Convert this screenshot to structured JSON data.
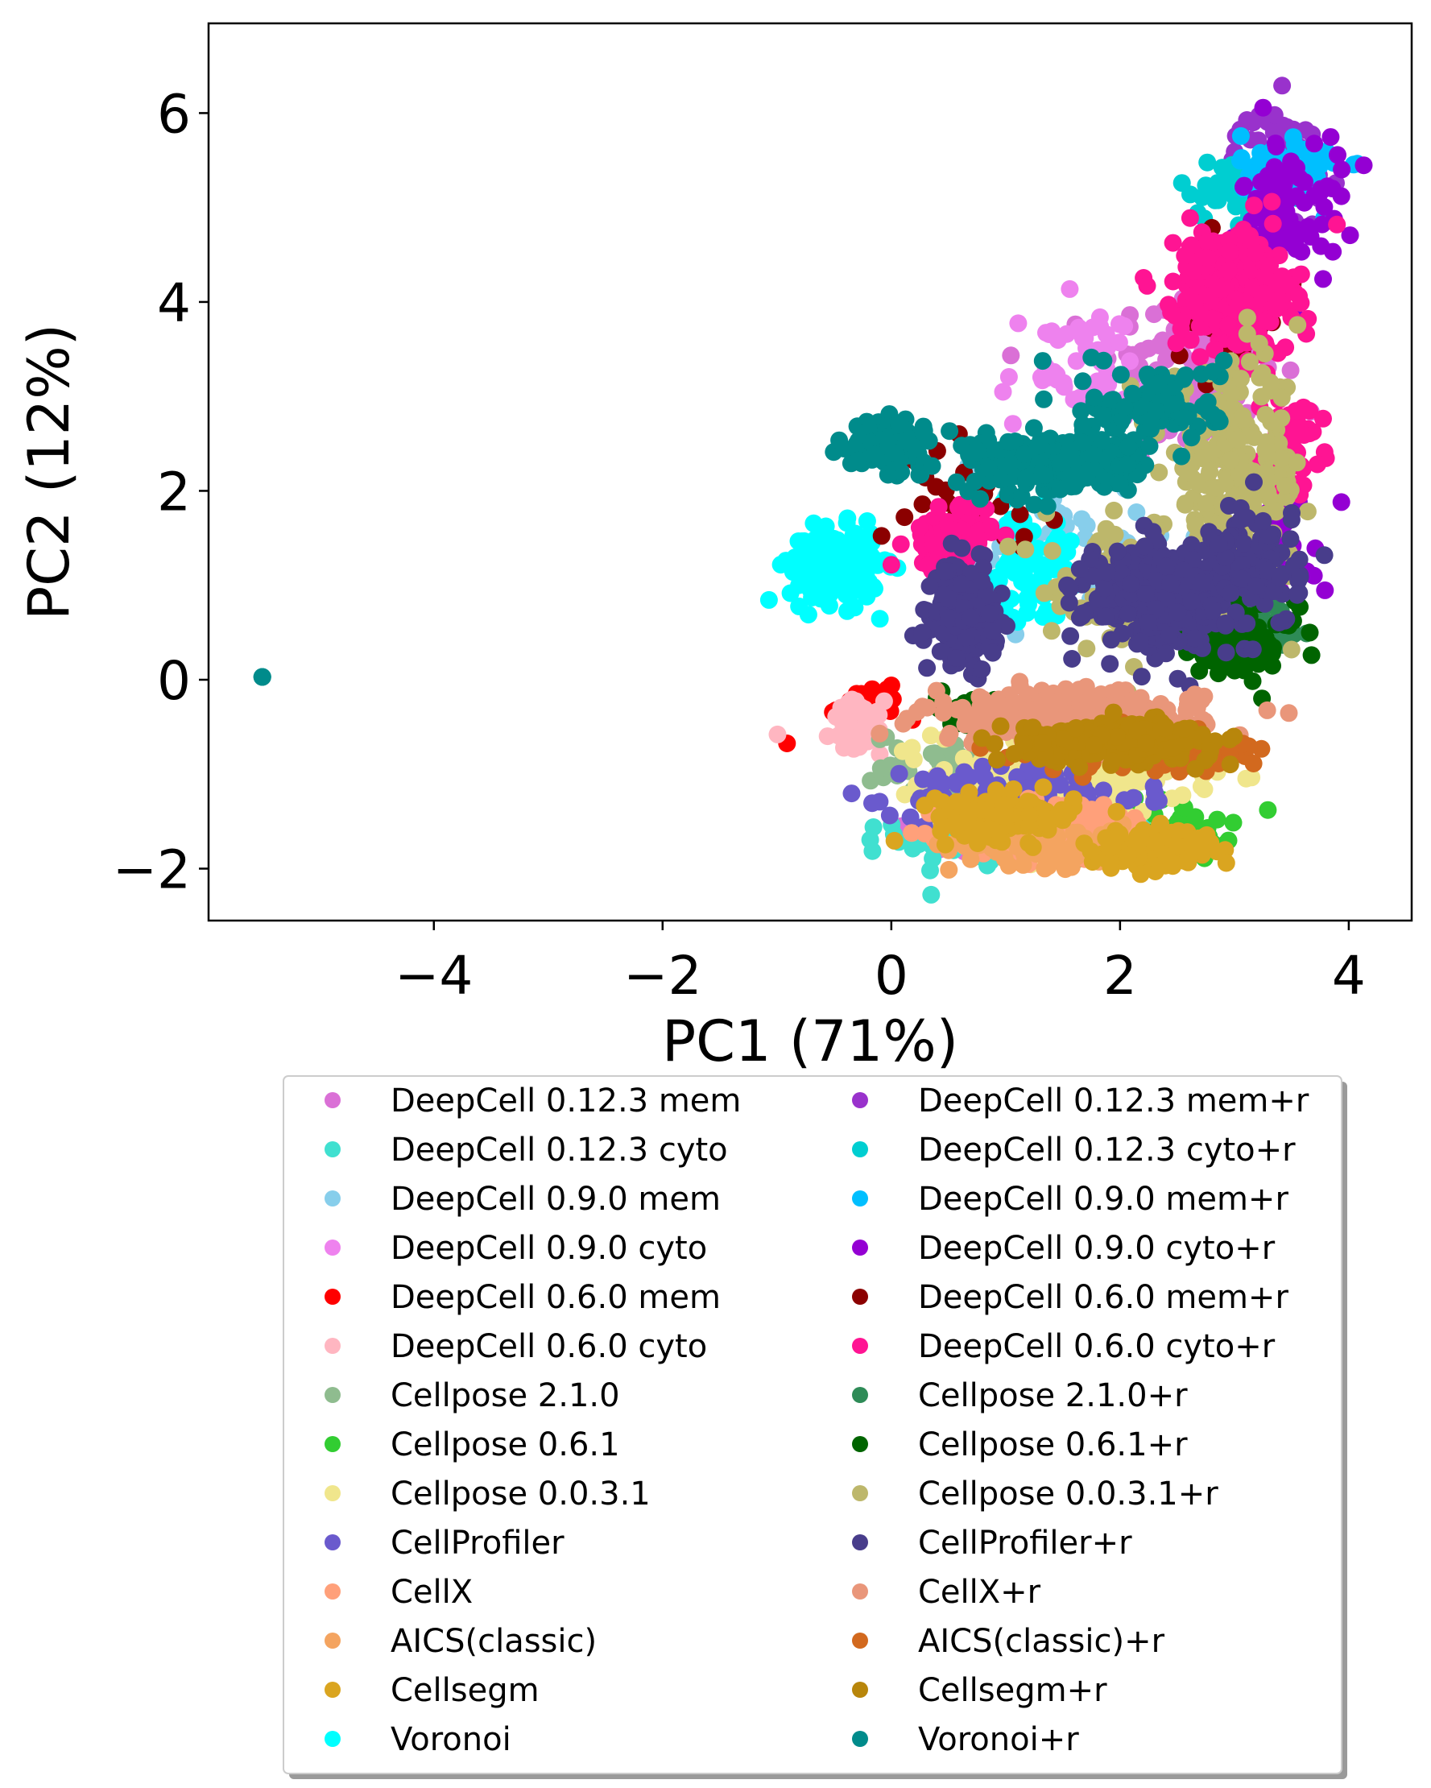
{
  "chart_data": {
    "type": "scatter",
    "xlabel": "PC1 (71%)",
    "ylabel": "PC2 (12%)",
    "xlim": [
      -5.97,
      4.55
    ],
    "ylim": [
      -2.55,
      6.95
    ],
    "xticks": [
      -4,
      -2,
      0,
      2,
      4
    ],
    "yticks": [
      -2,
      0,
      2,
      4,
      6
    ],
    "xtick_labels": [
      "−4",
      "−2",
      "0",
      "2",
      "4"
    ],
    "ytick_labels": [
      "−2",
      "0",
      "2",
      "4",
      "6"
    ],
    "grid": false,
    "legend_position": "below",
    "legend_columns": 2,
    "outlier": {
      "x": -5.5,
      "y": 0.03
    },
    "series": [
      {
        "name": "DeepCell 0.12.3 mem",
        "color": "#da70d6",
        "clusters": [
          {
            "x": 2.6,
            "y": 3.2,
            "sx": 0.7,
            "sy": 0.9,
            "n": 120
          },
          {
            "x": 0.8,
            "y": -1.6,
            "sx": 0.6,
            "sy": 0.3,
            "n": 50
          }
        ]
      },
      {
        "name": "DeepCell 0.12.3 cyto",
        "color": "#40e0d0",
        "clusters": [
          {
            "x": 1.2,
            "y": -1.7,
            "sx": 1.0,
            "sy": 0.25,
            "n": 120
          }
        ]
      },
      {
        "name": "DeepCell 0.9.0 mem",
        "color": "#87ceeb",
        "clusters": [
          {
            "x": 1.5,
            "y": 1.5,
            "sx": 1.0,
            "sy": 0.8,
            "n": 60
          }
        ]
      },
      {
        "name": "DeepCell 0.9.0 cyto",
        "color": "#ee82ee",
        "clusters": [
          {
            "x": 1.6,
            "y": 3.3,
            "sx": 0.6,
            "sy": 0.6,
            "n": 50
          }
        ]
      },
      {
        "name": "DeepCell 0.6.0 mem",
        "color": "#ff0000",
        "clusters": [
          {
            "x": -0.2,
            "y": -0.3,
            "sx": 0.25,
            "sy": 0.2,
            "n": 40
          },
          {
            "x": -0.92,
            "y": -0.68,
            "sx": 0.01,
            "sy": 0.01,
            "n": 1
          },
          {
            "x": -0.45,
            "y": 1.28,
            "sx": 0.01,
            "sy": 0.01,
            "n": 1
          }
        ]
      },
      {
        "name": "DeepCell 0.6.0 cyto",
        "color": "#ffb6c1",
        "clusters": [
          {
            "x": -0.3,
            "y": -0.5,
            "sx": 0.2,
            "sy": 0.25,
            "n": 60
          },
          {
            "x": -1.0,
            "y": -0.58,
            "sx": 0.01,
            "sy": 0.01,
            "n": 1
          }
        ]
      },
      {
        "name": "Cellpose 2.1.0",
        "color": "#8fbc8f",
        "clusters": [
          {
            "x": 0.5,
            "y": -0.9,
            "sx": 0.6,
            "sy": 0.3,
            "n": 40
          }
        ]
      },
      {
        "name": "Cellpose 0.6.1",
        "color": "#32cd32",
        "clusters": [
          {
            "x": 2.3,
            "y": -1.6,
            "sx": 0.6,
            "sy": 0.3,
            "n": 50
          }
        ]
      },
      {
        "name": "Cellpose 0.0.3.1",
        "color": "#f0e68c",
        "clusters": [
          {
            "x": 1.5,
            "y": -1.0,
            "sx": 1.0,
            "sy": 0.45,
            "n": 260
          }
        ]
      },
      {
        "name": "CellProfiler",
        "color": "#6a5acd",
        "clusters": [
          {
            "x": 1.2,
            "y": -1.25,
            "sx": 0.9,
            "sy": 0.35,
            "n": 130
          }
        ]
      },
      {
        "name": "CellX",
        "color": "#ffa07a",
        "clusters": [
          {
            "x": 1.5,
            "y": -1.6,
            "sx": 0.9,
            "sy": 0.3,
            "n": 140
          }
        ]
      },
      {
        "name": "AICS(classic)",
        "color": "#f4a460",
        "clusters": [
          {
            "x": 1.4,
            "y": -1.75,
            "sx": 0.8,
            "sy": 0.2,
            "n": 90
          }
        ]
      },
      {
        "name": "Cellsegm",
        "color": "#daa520",
        "clusters": [
          {
            "x": 1.0,
            "y": -1.45,
            "sx": 0.55,
            "sy": 0.22,
            "n": 130
          },
          {
            "x": 2.3,
            "y": -1.8,
            "sx": 0.5,
            "sy": 0.2,
            "n": 110
          }
        ]
      },
      {
        "name": "Voronoi",
        "color": "#00ffff",
        "clusters": [
          {
            "x": -0.5,
            "y": 1.2,
            "sx": 0.35,
            "sy": 0.35,
            "n": 200
          },
          {
            "x": 1.2,
            "y": 1.2,
            "sx": 0.35,
            "sy": 0.5,
            "n": 70
          }
        ]
      },
      {
        "name": "DeepCell 0.12.3 mem+r",
        "color": "#9932cc",
        "clusters": [
          {
            "x": 3.4,
            "y": 5.5,
            "sx": 0.35,
            "sy": 0.5,
            "n": 70
          }
        ]
      },
      {
        "name": "DeepCell 0.12.3 cyto+r",
        "color": "#00ced1",
        "clusters": [
          {
            "x": 3.0,
            "y": 5.2,
            "sx": 0.45,
            "sy": 0.3,
            "n": 50
          }
        ]
      },
      {
        "name": "DeepCell 0.9.0 mem+r",
        "color": "#00bfff",
        "clusters": [
          {
            "x": 3.5,
            "y": 5.4,
            "sx": 0.4,
            "sy": 0.35,
            "n": 80
          }
        ]
      },
      {
        "name": "DeepCell 0.9.0 cyto+r",
        "color": "#9400d3",
        "clusters": [
          {
            "x": 3.5,
            "y": 5.0,
            "sx": 0.4,
            "sy": 0.7,
            "n": 80
          },
          {
            "x": 3.4,
            "y": 1.5,
            "sx": 0.4,
            "sy": 0.6,
            "n": 40
          }
        ]
      },
      {
        "name": "DeepCell 0.6.0 mem+r",
        "color": "#8b0000",
        "clusters": [
          {
            "x": 2.9,
            "y": 4.0,
            "sx": 0.4,
            "sy": 0.6,
            "n": 90
          },
          {
            "x": 0.8,
            "y": 2.0,
            "sx": 0.6,
            "sy": 0.5,
            "n": 30
          }
        ]
      },
      {
        "name": "DeepCell 0.6.0 cyto+r",
        "color": "#ff1493",
        "clusters": [
          {
            "x": 3.0,
            "y": 4.1,
            "sx": 0.45,
            "sy": 0.6,
            "n": 300
          },
          {
            "x": 0.5,
            "y": 1.5,
            "sx": 0.3,
            "sy": 0.3,
            "n": 110
          },
          {
            "x": 3.5,
            "y": 2.5,
            "sx": 0.25,
            "sy": 0.4,
            "n": 50
          }
        ]
      },
      {
        "name": "Cellpose 2.1.0+r",
        "color": "#2e8b57",
        "clusters": [
          {
            "x": 3.2,
            "y": 0.6,
            "sx": 0.35,
            "sy": 0.35,
            "n": 50
          }
        ]
      },
      {
        "name": "Cellpose 0.6.1+r",
        "color": "#006400",
        "clusters": [
          {
            "x": 3.0,
            "y": 0.4,
            "sx": 0.5,
            "sy": 0.35,
            "n": 120
          },
          {
            "x": 0.6,
            "y": -0.3,
            "sx": 0.25,
            "sy": 0.15,
            "n": 20
          }
        ]
      },
      {
        "name": "Cellpose 0.0.3.1+r",
        "color": "#bdb76b",
        "clusters": [
          {
            "x": 3.0,
            "y": 2.2,
            "sx": 0.55,
            "sy": 1.0,
            "n": 220
          },
          {
            "x": 2.0,
            "y": 1.0,
            "sx": 0.6,
            "sy": 0.6,
            "n": 80
          }
        ]
      },
      {
        "name": "CellProfiler+r",
        "color": "#483d8b",
        "clusters": [
          {
            "x": 0.65,
            "y": 0.7,
            "sx": 0.25,
            "sy": 0.45,
            "n": 200
          },
          {
            "x": 2.3,
            "y": 0.9,
            "sx": 0.55,
            "sy": 0.5,
            "n": 300
          },
          {
            "x": 3.2,
            "y": 1.2,
            "sx": 0.35,
            "sy": 0.6,
            "n": 100
          }
        ]
      },
      {
        "name": "CellX+r",
        "color": "#e9967a",
        "clusters": [
          {
            "x": 1.5,
            "y": -0.4,
            "sx": 1.1,
            "sy": 0.25,
            "n": 250
          }
        ]
      },
      {
        "name": "AICS(classic)+r",
        "color": "#d2691e",
        "clusters": [
          {
            "x": 2.3,
            "y": -0.75,
            "sx": 0.9,
            "sy": 0.2,
            "n": 110
          }
        ]
      },
      {
        "name": "Cellsegm+r",
        "color": "#b8860b",
        "clusters": [
          {
            "x": 2.0,
            "y": -0.65,
            "sx": 0.75,
            "sy": 0.18,
            "n": 300
          }
        ]
      },
      {
        "name": "Voronoi+r",
        "color": "#008b8b",
        "clusters": [
          {
            "x": -0.05,
            "y": 2.5,
            "sx": 0.28,
            "sy": 0.22,
            "n": 170
          },
          {
            "x": 1.4,
            "y": 2.3,
            "sx": 0.65,
            "sy": 0.3,
            "n": 260
          },
          {
            "x": 2.3,
            "y": 2.9,
            "sx": 0.55,
            "sy": 0.4,
            "n": 100
          },
          {
            "x": -5.5,
            "y": 0.03,
            "sx": 0.001,
            "sy": 0.001,
            "n": 3
          }
        ]
      }
    ]
  }
}
